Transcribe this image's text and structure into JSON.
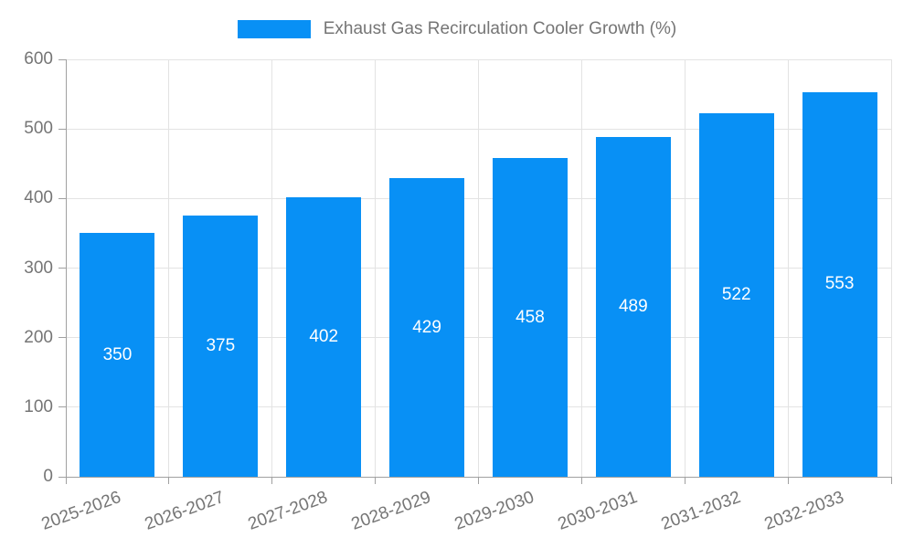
{
  "chart_data": {
    "type": "bar",
    "title": "Exhaust Gas Recirculation Cooler Growth (%)",
    "series_name": "Exhaust Gas Recirculation Cooler Growth (%)",
    "categories": [
      "2025-2026",
      "2026-2027",
      "2027-2028",
      "2028-2029",
      "2029-2030",
      "2030-2031",
      "2031-2032",
      "2032-2033"
    ],
    "values": [
      350,
      375,
      402,
      429,
      458,
      489,
      522,
      553
    ],
    "xlabel": "",
    "ylabel": "",
    "ylim": [
      0,
      600
    ],
    "yticks": [
      0,
      100,
      200,
      300,
      400,
      500,
      600
    ],
    "grid": true,
    "legend_position": "top-center",
    "value_label_position": "inside-middle",
    "x_label_rotation_deg": -20,
    "colors": {
      "bar": "#0890f5",
      "value_label": "#ffffff",
      "axis_text": "#757575",
      "grid_line": "#e3e3e3",
      "axis_line": "#a0a0a0",
      "background": "#ffffff"
    }
  }
}
